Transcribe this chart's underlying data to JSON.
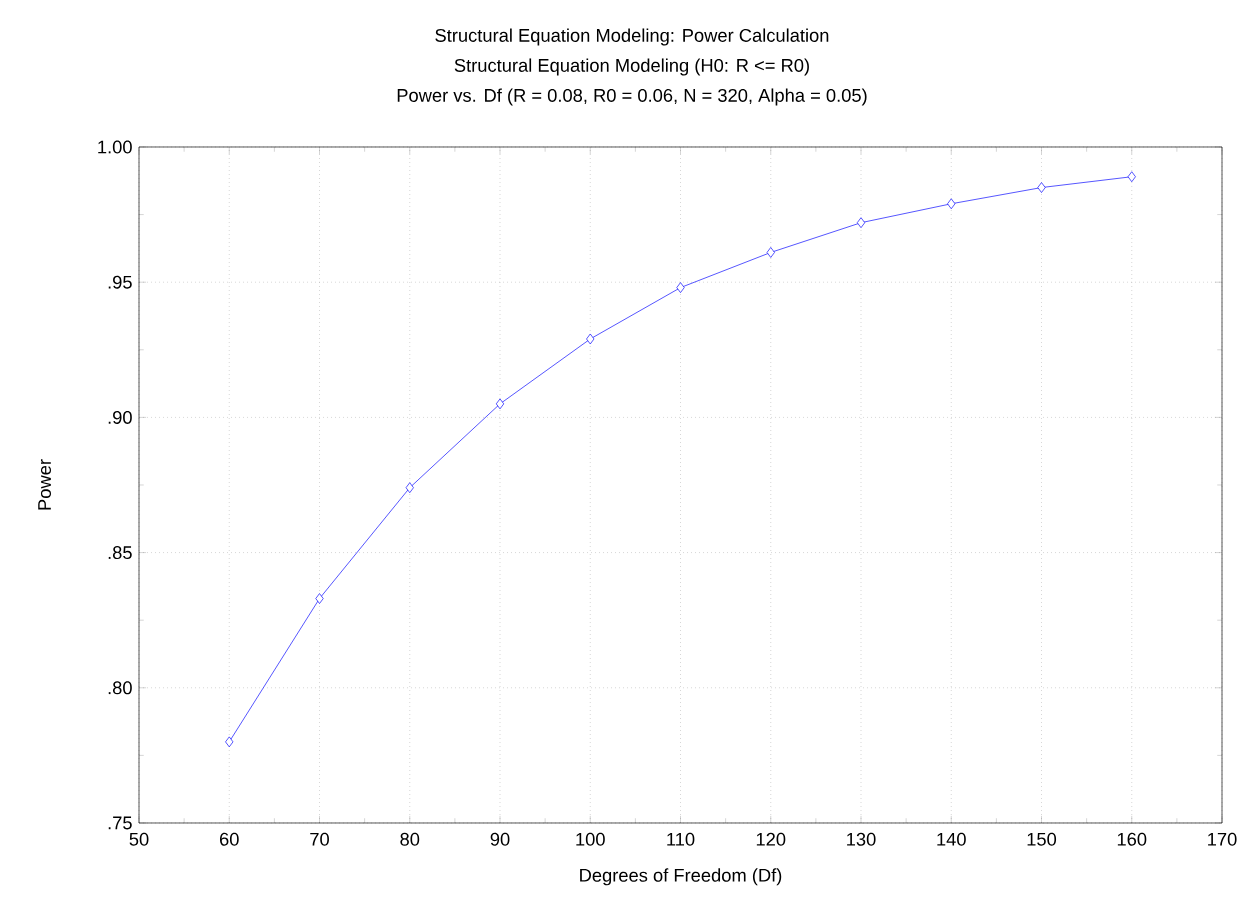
{
  "chart_data": {
    "type": "line",
    "title": "Structural Equation Modeling: Power Calculation",
    "subtitle": "Structural Equation Modeling (H0:  R <= R0)",
    "annotations": [
      "Power vs. Df (R = 0.08,  R0 = 0.06, N = 320, Alpha = 0.05)"
    ],
    "xlabel": "Degrees of Freedom (Df)",
    "ylabel": "Power",
    "x": [
      60,
      70,
      80,
      90,
      100,
      110,
      120,
      130,
      140,
      150,
      160
    ],
    "series": [
      {
        "color": "#0000ff",
        "values": [
          0.78,
          0.833,
          0.874,
          0.905,
          0.929,
          0.948,
          0.961,
          0.972,
          0.979,
          0.985,
          0.989
        ]
      }
    ],
    "xlim": [
      50,
      170
    ],
    "ylim": [
      0.75,
      1.0
    ],
    "xticks": [
      50,
      60,
      70,
      80,
      90,
      100,
      110,
      120,
      130,
      140,
      150,
      160,
      170
    ],
    "yticks": [
      {
        "value": 0.75,
        "label": ".75"
      },
      {
        "value": 0.8,
        "label": ".80"
      },
      {
        "value": 0.85,
        "label": ".85"
      },
      {
        "value": 0.9,
        "label": ".90"
      },
      {
        "value": 0.95,
        "label": ".95"
      },
      {
        "value": 1.0,
        "label": "1.00"
      }
    ],
    "grid": true,
    "marker": "diamond",
    "line_style": "solid"
  }
}
